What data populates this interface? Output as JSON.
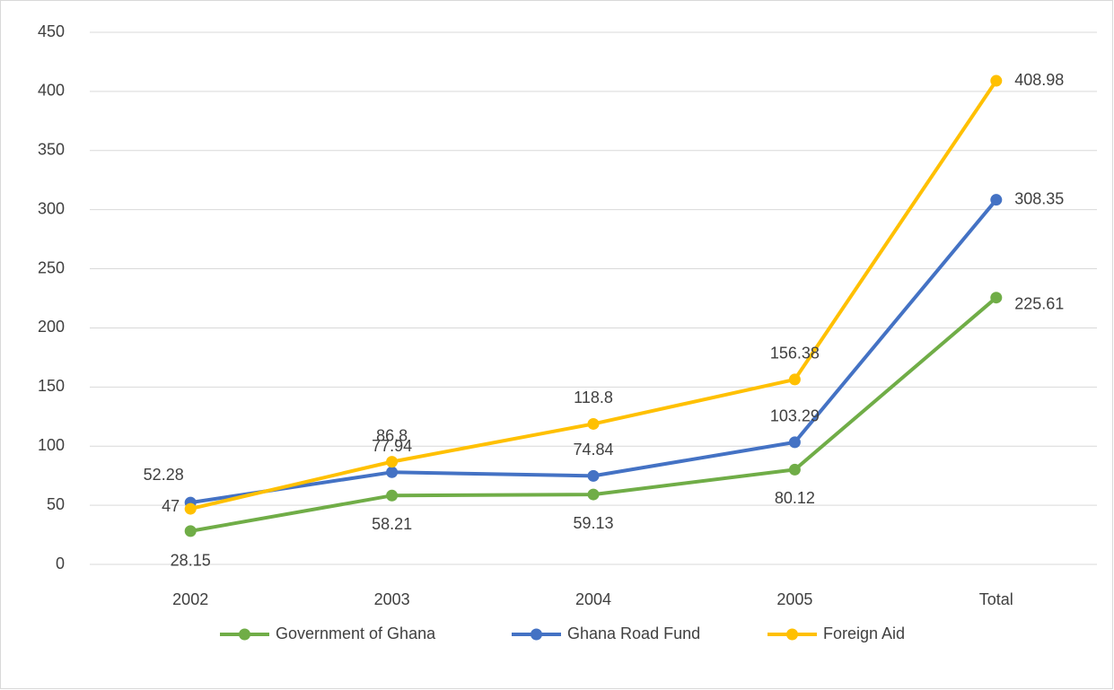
{
  "chart_data": {
    "type": "line",
    "categories": [
      "2002",
      "2003",
      "2004",
      "2005",
      "Total"
    ],
    "series": [
      {
        "name": "Government of Ghana",
        "color": "#70ad47",
        "values": [
          28.15,
          58.21,
          59.13,
          80.12,
          225.61
        ]
      },
      {
        "name": "Ghana Road Fund",
        "color": "#4472c4",
        "values": [
          52.28,
          77.94,
          74.84,
          103.29,
          308.35
        ]
      },
      {
        "name": "Foreign Aid",
        "color": "#ffc000",
        "values": [
          47,
          86.8,
          118.8,
          156.38,
          408.98
        ]
      }
    ],
    "ylim": [
      0,
      450
    ],
    "yticks": [
      0,
      50,
      100,
      150,
      200,
      250,
      300,
      350,
      400,
      450
    ],
    "grid": true,
    "legend": "bottom"
  }
}
